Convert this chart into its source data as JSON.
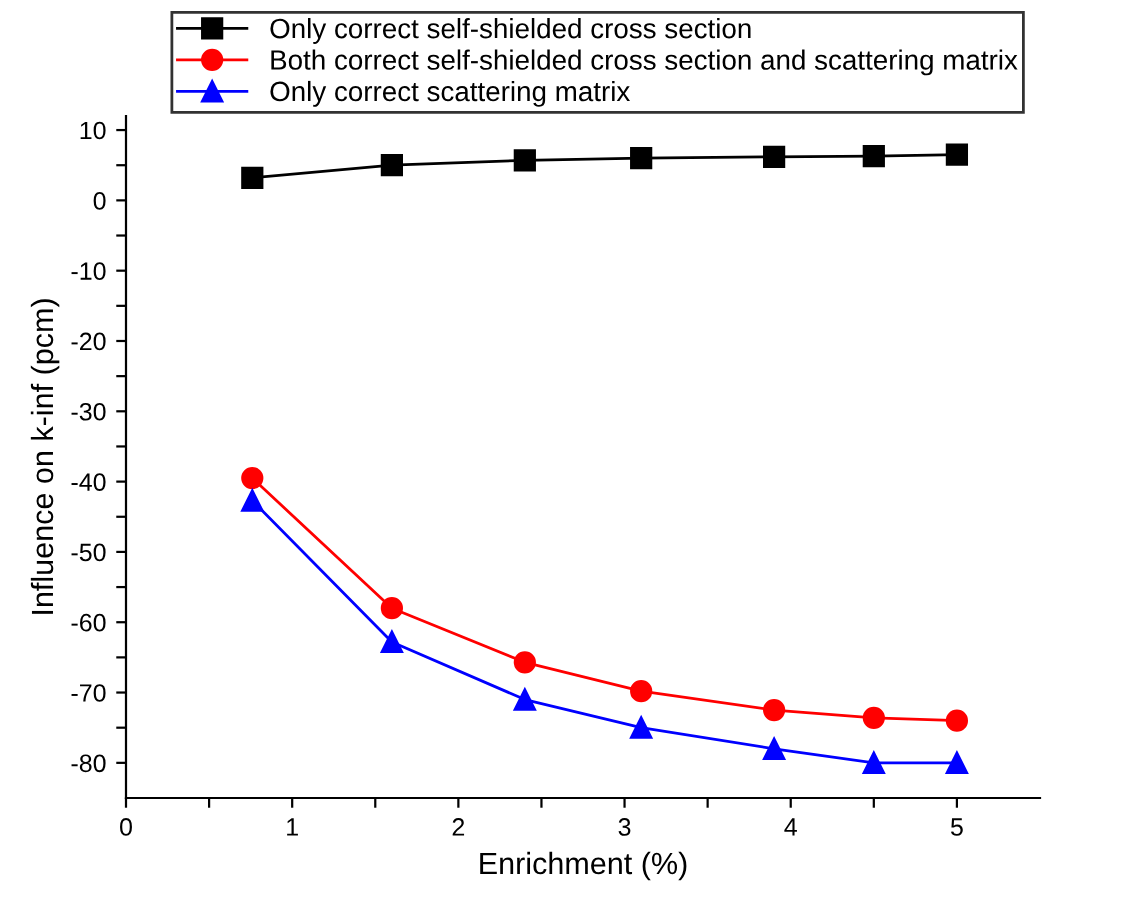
{
  "chart_data": {
    "type": "line",
    "xlabel": "Enrichment (%)",
    "ylabel": "Influence on k-inf (pcm)",
    "x": [
      0.76,
      1.6,
      2.4,
      3.1,
      3.9,
      4.5,
      5.0
    ],
    "series": [
      {
        "name": "Only correct self-shielded cross section",
        "color": "#000000",
        "marker": "square",
        "values": [
          3.2,
          5.0,
          5.7,
          6.0,
          6.2,
          6.3,
          6.5
        ]
      },
      {
        "name": "Both correct self-shielded cross section and scattering matrix",
        "color": "#ff0000",
        "marker": "circle",
        "values": [
          -39.5,
          -58,
          -65.7,
          -69.8,
          -72.5,
          -73.6,
          -74
        ]
      },
      {
        "name": "Only correct scattering matrix",
        "color": "#0000ff",
        "marker": "triangle",
        "values": [
          -42.7,
          -62.8,
          -71,
          -75,
          -78,
          -80,
          -80
        ]
      }
    ],
    "xlim": [
      0,
      5.5
    ],
    "ylim": [
      -85,
      12
    ],
    "xticks": [
      0,
      {
        "value": 0.5,
        "label": null
      },
      1,
      {
        "value": 1.5,
        "label": null
      },
      2,
      {
        "value": 2.5,
        "label": null
      },
      3,
      {
        "value": 3.5,
        "label": null
      },
      4,
      {
        "value": 4.5,
        "label": null
      },
      5
    ],
    "yticks": [
      -80,
      {
        "value": -75,
        "label": null
      },
      -70,
      {
        "value": -65,
        "label": null
      },
      -60,
      {
        "value": -55,
        "label": null
      },
      -50,
      {
        "value": -45,
        "label": null
      },
      -40,
      {
        "value": -35,
        "label": null
      },
      -30,
      {
        "value": -25,
        "label": null
      },
      -20,
      {
        "value": -15,
        "label": null
      },
      -10,
      {
        "value": -5,
        "label": null
      },
      0,
      {
        "value": 5,
        "label": null
      },
      10
    ],
    "legend": "top",
    "line_style": "solid",
    "grid": false
  }
}
